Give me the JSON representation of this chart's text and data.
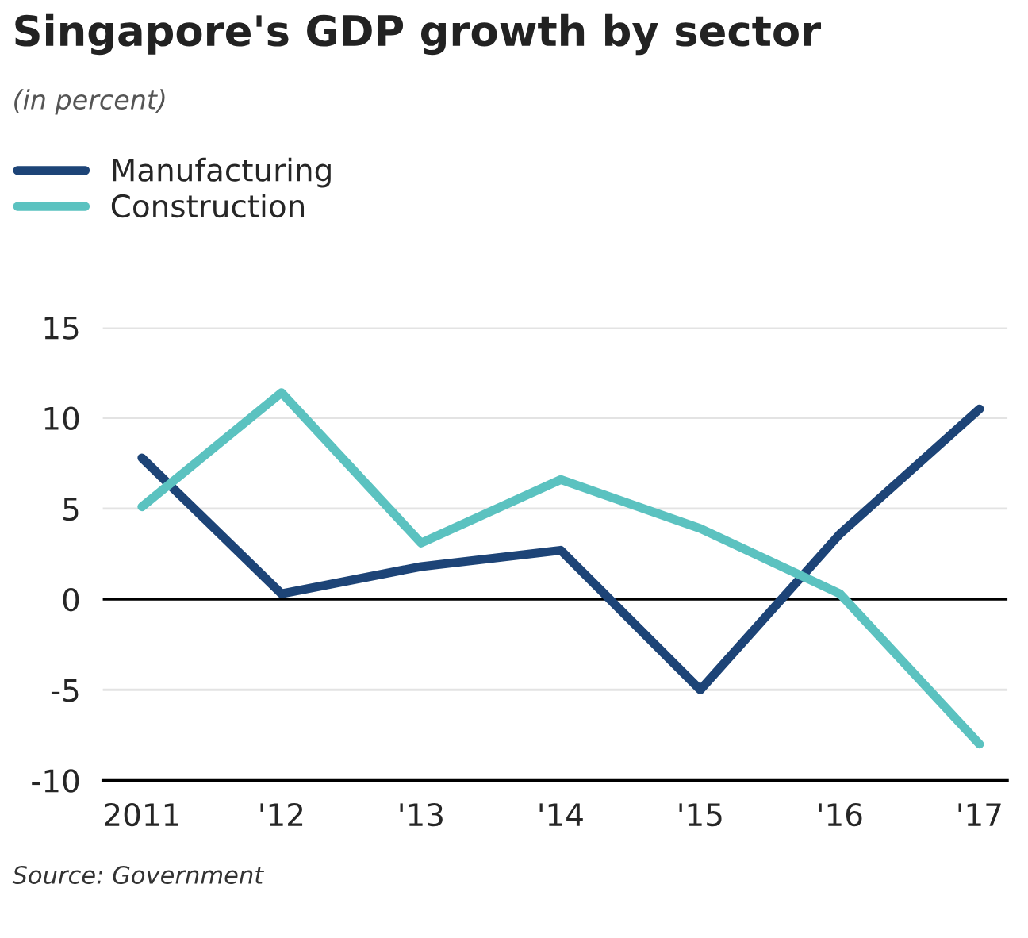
{
  "chart_data": {
    "type": "line",
    "title": "Singapore's GDP growth by sector",
    "subtitle": "(in percent)",
    "categories": [
      "2011",
      "'12",
      "'13",
      "'14",
      "'15",
      "'16",
      "'17"
    ],
    "series": [
      {
        "name": "Manufacturing",
        "color": "#1d4477",
        "values": [
          7.8,
          0.3,
          1.8,
          2.7,
          -5.0,
          3.6,
          10.5
        ]
      },
      {
        "name": "Construction",
        "color": "#5bc2c0",
        "values": [
          5.1,
          11.4,
          3.1,
          6.6,
          3.9,
          0.3,
          -8.0
        ]
      }
    ],
    "ylim": [
      -10,
      15
    ],
    "yticks": [
      -10,
      -5,
      0,
      5,
      10,
      15
    ],
    "grid": "y",
    "legend": "top left",
    "ref_lines": [
      {
        "axis": "y",
        "value": 0,
        "color": "#000000"
      }
    ],
    "annotations": [
      "Source: Government"
    ]
  }
}
